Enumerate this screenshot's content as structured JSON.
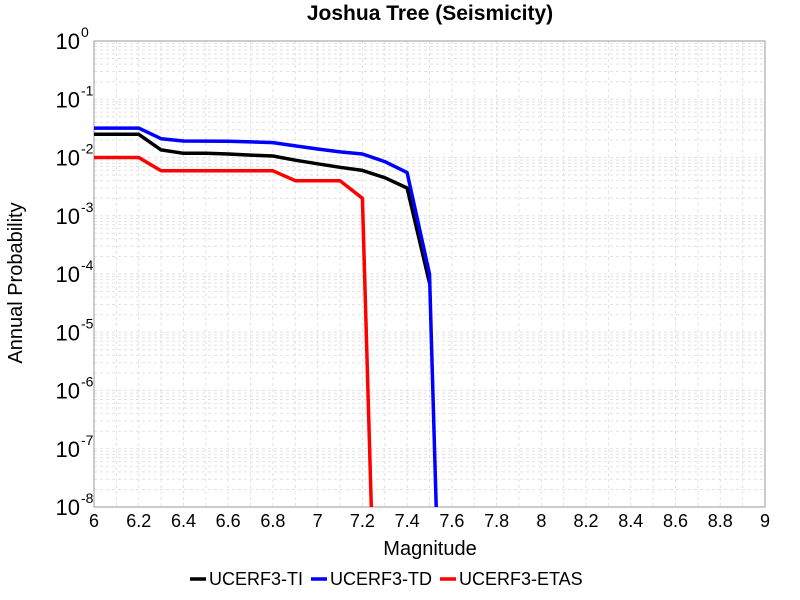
{
  "chart_data": {
    "type": "line",
    "title": "Joshua Tree (Seismicity)",
    "xlabel": "Magnitude",
    "ylabel": "Annual Probability",
    "xlim": [
      6,
      9
    ],
    "ylim": [
      1e-08,
      1
    ],
    "yscale": "log",
    "grid": true,
    "legend_position": "bottom",
    "x_ticks": [
      "6",
      "6.2",
      "6.4",
      "6.6",
      "6.8",
      "7",
      "7.2",
      "7.4",
      "7.6",
      "7.8",
      "8",
      "8.2",
      "8.4",
      "8.6",
      "8.8",
      "9"
    ],
    "y_ticks": [
      {
        "base": "10",
        "exp": "0"
      },
      {
        "base": "10",
        "exp": "-1"
      },
      {
        "base": "10",
        "exp": "-2"
      },
      {
        "base": "10",
        "exp": "-3"
      },
      {
        "base": "10",
        "exp": "-4"
      },
      {
        "base": "10",
        "exp": "-5"
      },
      {
        "base": "10",
        "exp": "-6"
      },
      {
        "base": "10",
        "exp": "-7"
      },
      {
        "base": "10",
        "exp": "-8"
      }
    ],
    "series": [
      {
        "name": "UCERF3-TI",
        "color": "#000000",
        "x": [
          6.0,
          6.1,
          6.2,
          6.3,
          6.4,
          6.5,
          6.6,
          6.7,
          6.8,
          6.9,
          7.0,
          7.1,
          7.2,
          7.3,
          7.4,
          7.5
        ],
        "y": [
          0.025,
          0.025,
          0.025,
          0.0135,
          0.0118,
          0.0118,
          0.0115,
          0.011,
          0.0106,
          0.009,
          0.0078,
          0.0068,
          0.006,
          0.0045,
          0.003,
          7e-05
        ]
      },
      {
        "name": "UCERF3-TD",
        "color": "#0000ff",
        "x": [
          6.0,
          6.1,
          6.2,
          6.3,
          6.4,
          6.5,
          6.6,
          6.7,
          6.8,
          6.9,
          7.0,
          7.1,
          7.2,
          7.3,
          7.4,
          7.5,
          7.53
        ],
        "y": [
          0.032,
          0.032,
          0.032,
          0.021,
          0.0192,
          0.0191,
          0.019,
          0.0185,
          0.018,
          0.0158,
          0.014,
          0.0125,
          0.0115,
          0.0085,
          0.0055,
          0.0001,
          1e-08
        ]
      },
      {
        "name": "UCERF3-ETAS",
        "color": "#ff0000",
        "x": [
          6.0,
          6.1,
          6.2,
          6.3,
          6.4,
          6.5,
          6.6,
          6.7,
          6.8,
          6.9,
          7.0,
          7.1,
          7.2,
          7.24
        ],
        "y": [
          0.01,
          0.01,
          0.01,
          0.0059,
          0.0059,
          0.0059,
          0.0059,
          0.0059,
          0.0059,
          0.004,
          0.004,
          0.004,
          0.002,
          1e-08
        ]
      }
    ]
  }
}
